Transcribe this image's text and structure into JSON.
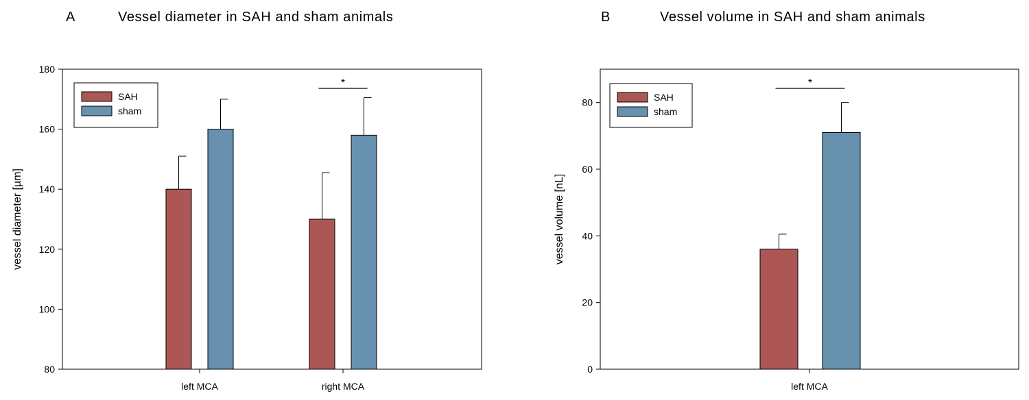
{
  "colors": {
    "sah": "#ad5656",
    "sham": "#6791ae"
  },
  "chart_data": [
    {
      "type": "bar",
      "panel": "A",
      "title": "Vessel diameter in SAH and sham animals",
      "xlabel": "",
      "ylabel": "vessel diameter [µm]",
      "ylim": [
        80,
        180
      ],
      "yticks": [
        80,
        100,
        120,
        140,
        160,
        180
      ],
      "categories": [
        "left MCA",
        "right MCA"
      ],
      "series": [
        {
          "name": "SAH",
          "values": [
            140,
            130
          ],
          "errors": [
            11,
            15.5
          ]
        },
        {
          "name": "sham",
          "values": [
            160,
            158
          ],
          "errors": [
            10,
            12.5
          ]
        }
      ],
      "significance": [
        {
          "category": "right MCA",
          "label": "*"
        }
      ],
      "legend": "top-left",
      "grid": false
    },
    {
      "type": "bar",
      "panel": "B",
      "title": "Vessel volume in SAH and sham animals",
      "xlabel": "",
      "ylabel": "vessel volume [nL]",
      "ylim": [
        0,
        90
      ],
      "yticks": [
        0,
        20,
        40,
        60,
        80
      ],
      "categories": [
        "left MCA"
      ],
      "series": [
        {
          "name": "SAH",
          "values": [
            36
          ],
          "errors": [
            4.5
          ]
        },
        {
          "name": "sham",
          "values": [
            71
          ],
          "errors": [
            9
          ]
        }
      ],
      "significance": [
        {
          "category": "left MCA",
          "label": "*"
        }
      ],
      "legend": "top-left",
      "grid": false
    }
  ]
}
